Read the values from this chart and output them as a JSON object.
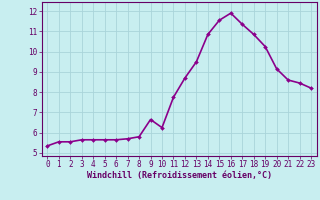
{
  "x": [
    0,
    1,
    2,
    3,
    4,
    5,
    6,
    7,
    8,
    9,
    10,
    11,
    12,
    13,
    14,
    15,
    16,
    17,
    18,
    19,
    20,
    21,
    22,
    23
  ],
  "y": [
    5.35,
    5.55,
    5.55,
    5.65,
    5.65,
    5.65,
    5.65,
    5.7,
    5.8,
    6.65,
    6.25,
    7.75,
    8.7,
    9.5,
    10.85,
    11.55,
    11.9,
    11.35,
    10.85,
    10.25,
    9.15,
    8.6,
    8.45,
    8.2
  ],
  "line_color": "#8B008B",
  "marker": "D",
  "marker_size": 2.0,
  "bg_color": "#c8eef0",
  "grid_color": "#aad4da",
  "axis_color": "#660066",
  "xlabel": "Windchill (Refroidissement éolien,°C)",
  "ylabel_ticks": [
    5,
    6,
    7,
    8,
    9,
    10,
    11,
    12
  ],
  "xlim": [
    -0.5,
    23.5
  ],
  "ylim": [
    4.85,
    12.45
  ],
  "font_color": "#660066",
  "line_width": 1.2,
  "tick_fontsize": 5.5,
  "xlabel_fontsize": 6.0
}
